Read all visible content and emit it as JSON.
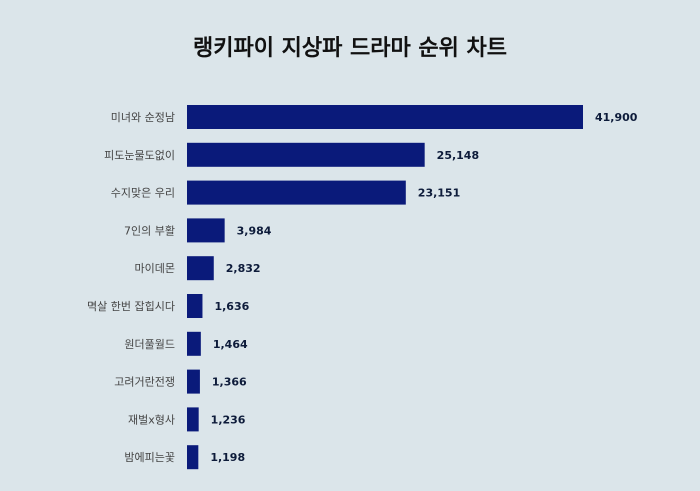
{
  "chart_data": {
    "type": "bar",
    "orientation": "horizontal",
    "title": "랭키파이 지상파 드라마 순위 차트",
    "categories": [
      "미녀와 순정남",
      "피도눈물도없이",
      "수지맞은 우리",
      "7인의 부활",
      "마이데몬",
      "멱살 한번 잡힙시다",
      "원더풀월드",
      "고려거란전쟁",
      "재벌x형사",
      "밤에피는꽃"
    ],
    "values": [
      41900,
      25148,
      23151,
      3984,
      2832,
      1636,
      1464,
      1366,
      1236,
      1198
    ],
    "value_labels": [
      "41,900",
      "25,148",
      "23,151",
      "3,984",
      "2,832",
      "1,636",
      "1,464",
      "1,366",
      "1,236",
      "1,198"
    ],
    "bar_color": "#0a1a7a",
    "grid": false,
    "legend": "none"
  }
}
